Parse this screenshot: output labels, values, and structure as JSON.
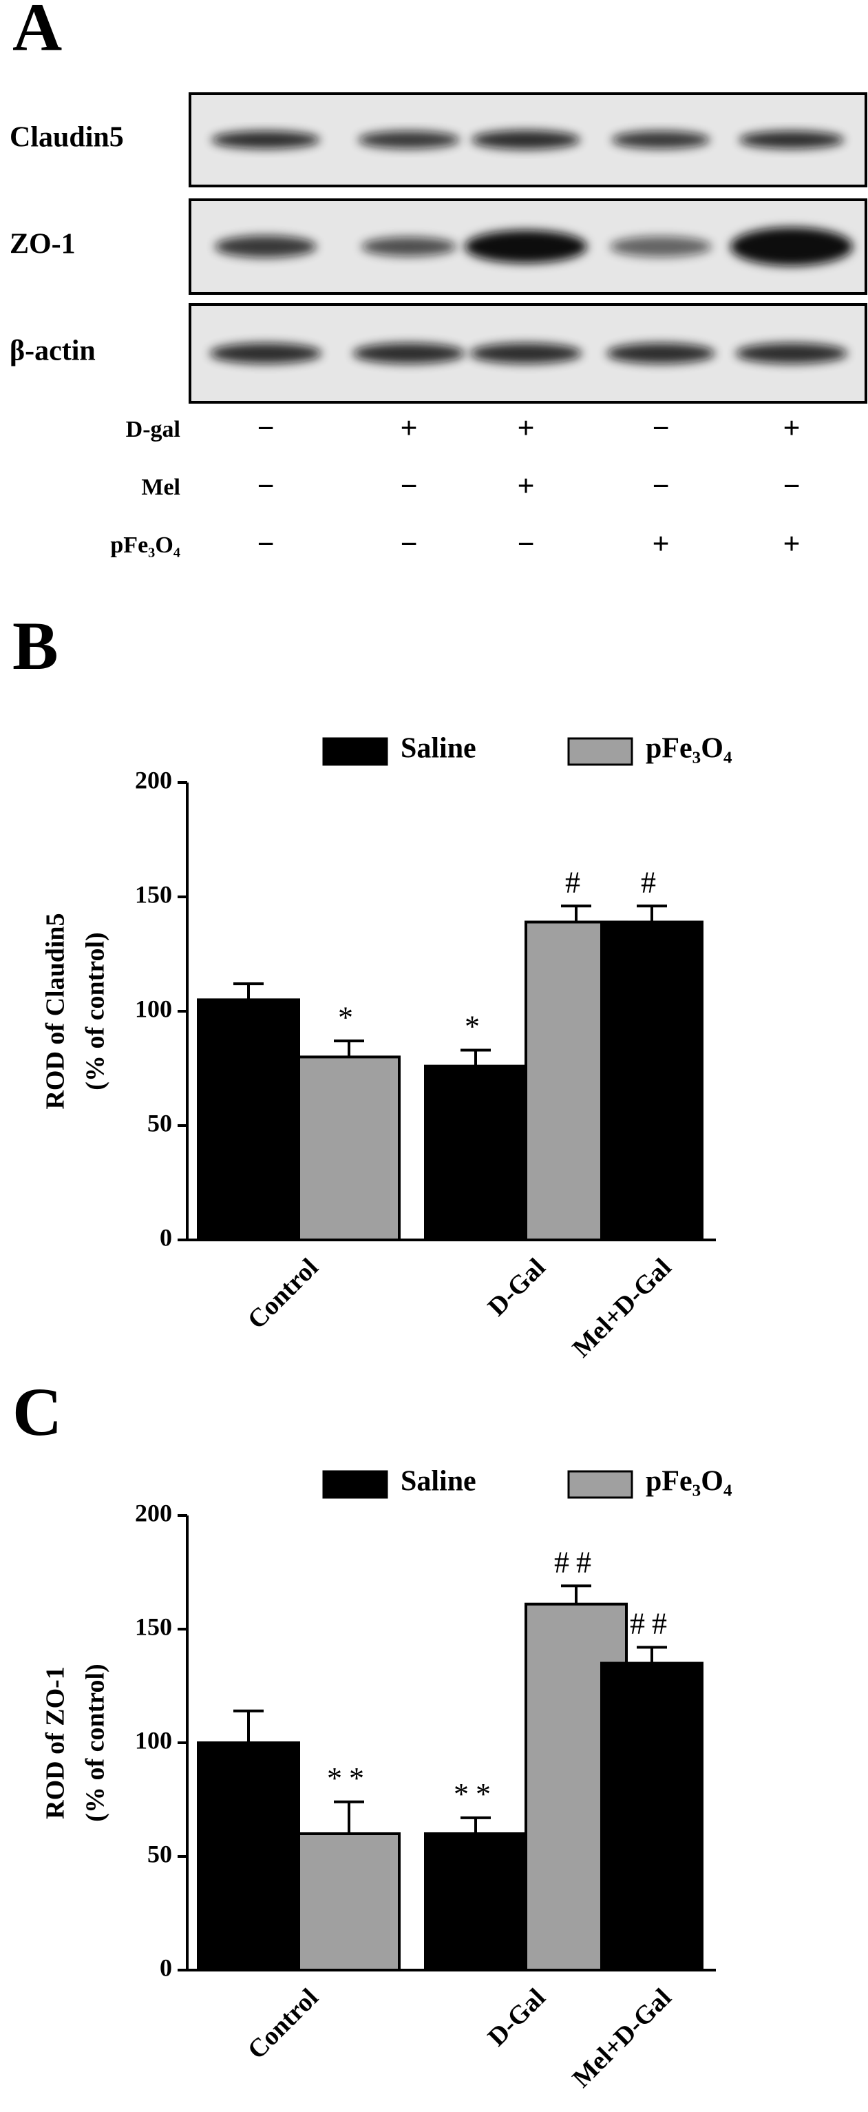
{
  "blot": {
    "panel_label": "A",
    "rows": [
      "Claudin5",
      "ZO-1",
      "β-actin"
    ],
    "treatments": [
      {
        "label": "D-gal",
        "signs": [
          "−",
          "+",
          "+",
          "−",
          "+"
        ]
      },
      {
        "label": "Mel",
        "signs": [
          "−",
          "−",
          "+",
          "−",
          "−"
        ]
      },
      {
        "label": "pFe₃O₄",
        "signs": [
          "−",
          "−",
          "−",
          "+",
          "+"
        ]
      }
    ]
  },
  "chart_data": [
    {
      "type": "bar",
      "panel_label": "B",
      "ylabel": [
        "ROD of Claudin5",
        "(% of control)"
      ],
      "categories": [
        "Control",
        "D-Gal",
        "Mel+D-Gal"
      ],
      "series": [
        {
          "name": "Saline",
          "color": "#000000",
          "values": [
            105,
            76,
            139
          ],
          "errors": [
            7,
            7,
            7
          ],
          "annotations": [
            null,
            "*",
            "#"
          ]
        },
        {
          "name": "pFe₃O₄",
          "color": "#a0a0a0",
          "values": [
            80,
            139,
            null
          ],
          "errors": [
            7,
            7,
            null
          ],
          "annotations": [
            "*",
            "#",
            null
          ]
        }
      ],
      "ylim": [
        0,
        200
      ],
      "yticks": [
        0,
        50,
        100,
        150,
        200
      ],
      "grid": false
    },
    {
      "type": "bar",
      "panel_label": "C",
      "ylabel": [
        "ROD of ZO-1",
        "(% of control)"
      ],
      "categories": [
        "Control",
        "D-Gal",
        "Mel+D-Gal"
      ],
      "series": [
        {
          "name": "Saline",
          "color": "#000000",
          "values": [
            100,
            60,
            135
          ],
          "errors": [
            14,
            7,
            7
          ],
          "annotations": [
            null,
            "**",
            "##"
          ]
        },
        {
          "name": "pFe₃O₄",
          "color": "#a0a0a0",
          "values": [
            60,
            161,
            null
          ],
          "errors": [
            14,
            8,
            null
          ],
          "annotations": [
            "**",
            "##",
            null
          ]
        }
      ],
      "ylim": [
        0,
        200
      ],
      "yticks": [
        0,
        50,
        100,
        150,
        200
      ],
      "grid": false
    }
  ]
}
